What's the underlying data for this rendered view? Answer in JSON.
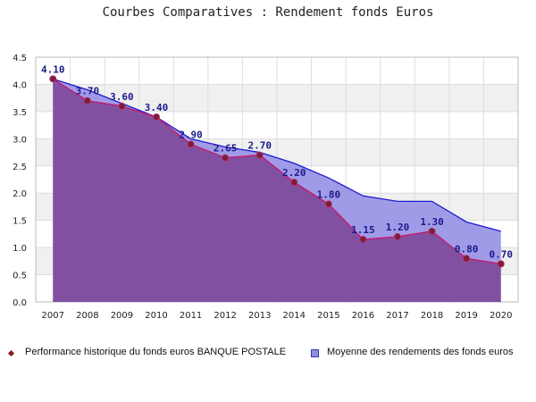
{
  "title": "Courbes Comparatives : Rendement fonds Euros",
  "colors": {
    "series_fill": "#7f4a9b",
    "series_line": "#c8186a",
    "series_marker": "#7a1f3a",
    "average_fill": "#9a96e6",
    "average_line": "#1c1cd0",
    "label_text": "#1a1a8c",
    "band": "#f0f0f0"
  },
  "legend": {
    "series1": "Performance historique du fonds euros BANQUE POSTALE",
    "series2": "Moyenne des rendements des fonds euros"
  },
  "chart_data": {
    "type": "area",
    "title": "Courbes Comparatives : Rendement fonds Euros",
    "x": [
      "2007",
      "2008",
      "2009",
      "2010",
      "2011",
      "2012",
      "2013",
      "2014",
      "2015",
      "2016",
      "2017",
      "2018",
      "2019",
      "2020"
    ],
    "ylim": [
      0,
      4.5
    ],
    "yticks": [
      "0.0",
      "0.5",
      "1.0",
      "1.5",
      "2.0",
      "2.5",
      "3.0",
      "3.5",
      "4.0",
      "4.5"
    ],
    "grid": true,
    "legend_position": "bottom",
    "series": [
      {
        "name": "Performance historique du fonds euros BANQUE POSTALE",
        "values": [
          4.1,
          3.7,
          3.6,
          3.4,
          2.9,
          2.65,
          2.7,
          2.2,
          1.8,
          1.15,
          1.2,
          1.3,
          0.8,
          0.7
        ],
        "labels": [
          "4.10",
          "3.70",
          "3.60",
          "3.40",
          "2.90",
          "2.65",
          "2.70",
          "2.20",
          "1.80",
          "1.15",
          "1.20",
          "1.30",
          "0.80",
          "0.70"
        ]
      },
      {
        "name": "Moyenne des rendements des fonds euros",
        "values": [
          4.1,
          3.9,
          3.65,
          3.4,
          3.0,
          2.85,
          2.75,
          2.55,
          2.28,
          1.95,
          1.85,
          1.85,
          1.47,
          1.3
        ]
      }
    ]
  }
}
